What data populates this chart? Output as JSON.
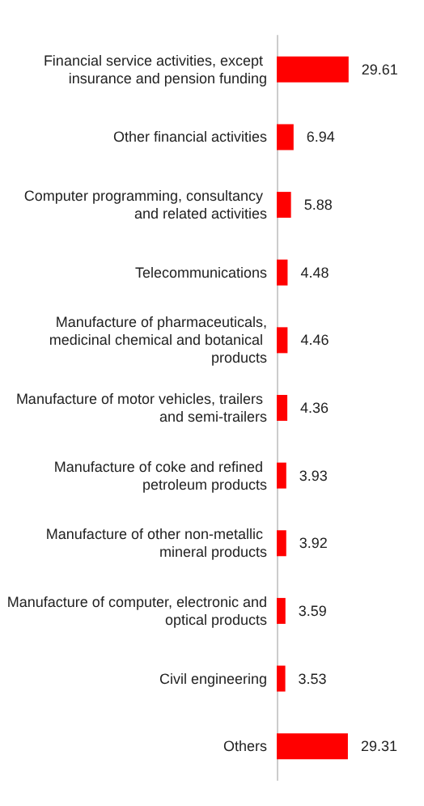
{
  "chart_data": {
    "type": "bar",
    "orientation": "horizontal",
    "data_labels": true,
    "categories": [
      "Financial service activities, except insurance and pension funding",
      "Other financial activities",
      "Computer programming, consultancy and related activities",
      "Telecommunications",
      "Manufacture of pharmaceuticals,medicinal chemical and botanical products",
      "Manufacture of motor vehicles, trailers and semi-trailers",
      "Manufacture of coke and refined petroleum products",
      "Manufacture of other non-metallic mineral products",
      "Manufacture of computer, electronic and optical products",
      "Civil engineering",
      "Others"
    ],
    "values": [
      29.61,
      6.94,
      5.88,
      4.48,
      4.46,
      4.36,
      3.93,
      3.92,
      3.59,
      3.53,
      29.31
    ],
    "color": "#ff0000",
    "tick_labels": "y"
  }
}
